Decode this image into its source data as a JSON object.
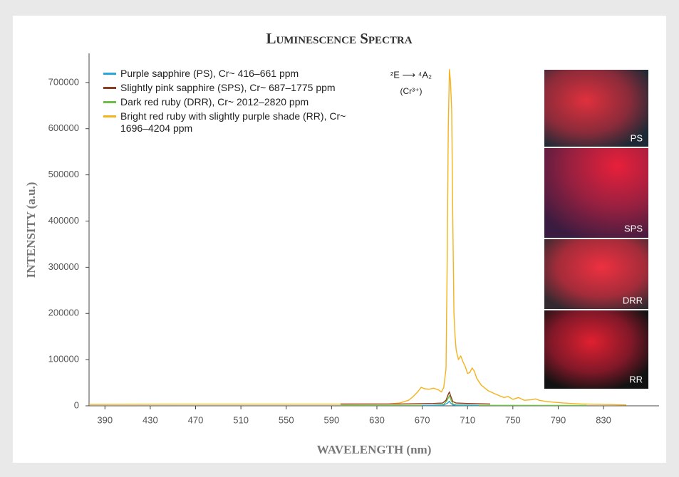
{
  "chart_data": {
    "type": "line",
    "title": "Luminescence Spectra",
    "x_label": "WAVELENGTH (nm)",
    "y_label": "INTENSITY (a.u.)",
    "xlim": [
      376,
      879
    ],
    "ylim": [
      0,
      763000
    ],
    "xticks": [
      390,
      430,
      470,
      510,
      550,
      590,
      630,
      670,
      710,
      750,
      790,
      830
    ],
    "yticks": [
      0,
      100000,
      200000,
      300000,
      400000,
      500000,
      600000,
      700000
    ],
    "annotations": [
      "²E ⟶ ⁴A₂",
      "(Cr³⁺)"
    ],
    "insets": [
      "PS",
      "SPS",
      "DRR",
      "RR"
    ],
    "series": [
      {
        "name": "Purple sapphire (PS), Cr~ 416–661 ppm",
        "color": "#2aa6de",
        "x": [
          670,
          688,
          692,
          694,
          695,
          697,
          700,
          720
        ],
        "values": [
          500,
          1000,
          5000,
          10000,
          6000,
          2000,
          1000,
          500
        ]
      },
      {
        "name": "Slightly pink sapphire (SPS), Cr~ 687–1775 ppm",
        "color": "#8e3b1f",
        "x": [
          598,
          650,
          680,
          688,
          691,
          693,
          694,
          695,
          697,
          700,
          710,
          730
        ],
        "values": [
          4000,
          4000,
          5000,
          6000,
          12000,
          25000,
          30000,
          22000,
          9000,
          6000,
          5000,
          4000
        ]
      },
      {
        "name": "Dark red ruby (DRR), Cr~ 2012–2820 ppm",
        "color": "#6cbf46",
        "x": [
          598,
          680,
          689,
          692,
          694,
          695,
          697,
          700,
          720,
          815
        ],
        "values": [
          800,
          1000,
          3000,
          12000,
          22000,
          15000,
          4000,
          2000,
          1000,
          800
        ]
      },
      {
        "name": "Bright red ruby with slightly purple shade (RR), Cr~ 1696–4204 ppm",
        "color": "#f5b21c",
        "x": [
          376,
          450,
          550,
          600,
          640,
          650,
          658,
          662,
          666,
          669,
          672,
          676,
          680,
          684,
          687,
          689,
          691,
          692,
          693,
          694,
          695,
          696,
          697,
          698,
          699,
          700,
          701,
          702,
          704,
          706,
          708,
          710,
          712,
          714,
          716,
          718,
          722,
          728,
          735,
          742,
          746,
          750,
          755,
          760,
          766,
          770,
          773,
          778,
          785,
          795,
          810,
          830,
          850
        ],
        "values": [
          3000,
          3500,
          3500,
          3500,
          4000,
          6000,
          12000,
          20000,
          30000,
          40000,
          37000,
          36000,
          38000,
          35000,
          30000,
          40000,
          80000,
          300000,
          600000,
          728000,
          700000,
          640000,
          400000,
          200000,
          150000,
          120000,
          110000,
          100000,
          108000,
          95000,
          85000,
          70000,
          72000,
          82000,
          75000,
          60000,
          45000,
          33000,
          25000,
          18000,
          20000,
          14000,
          18000,
          12000,
          13000,
          15000,
          12000,
          10000,
          8000,
          6000,
          4000,
          3000,
          2000
        ]
      }
    ]
  }
}
